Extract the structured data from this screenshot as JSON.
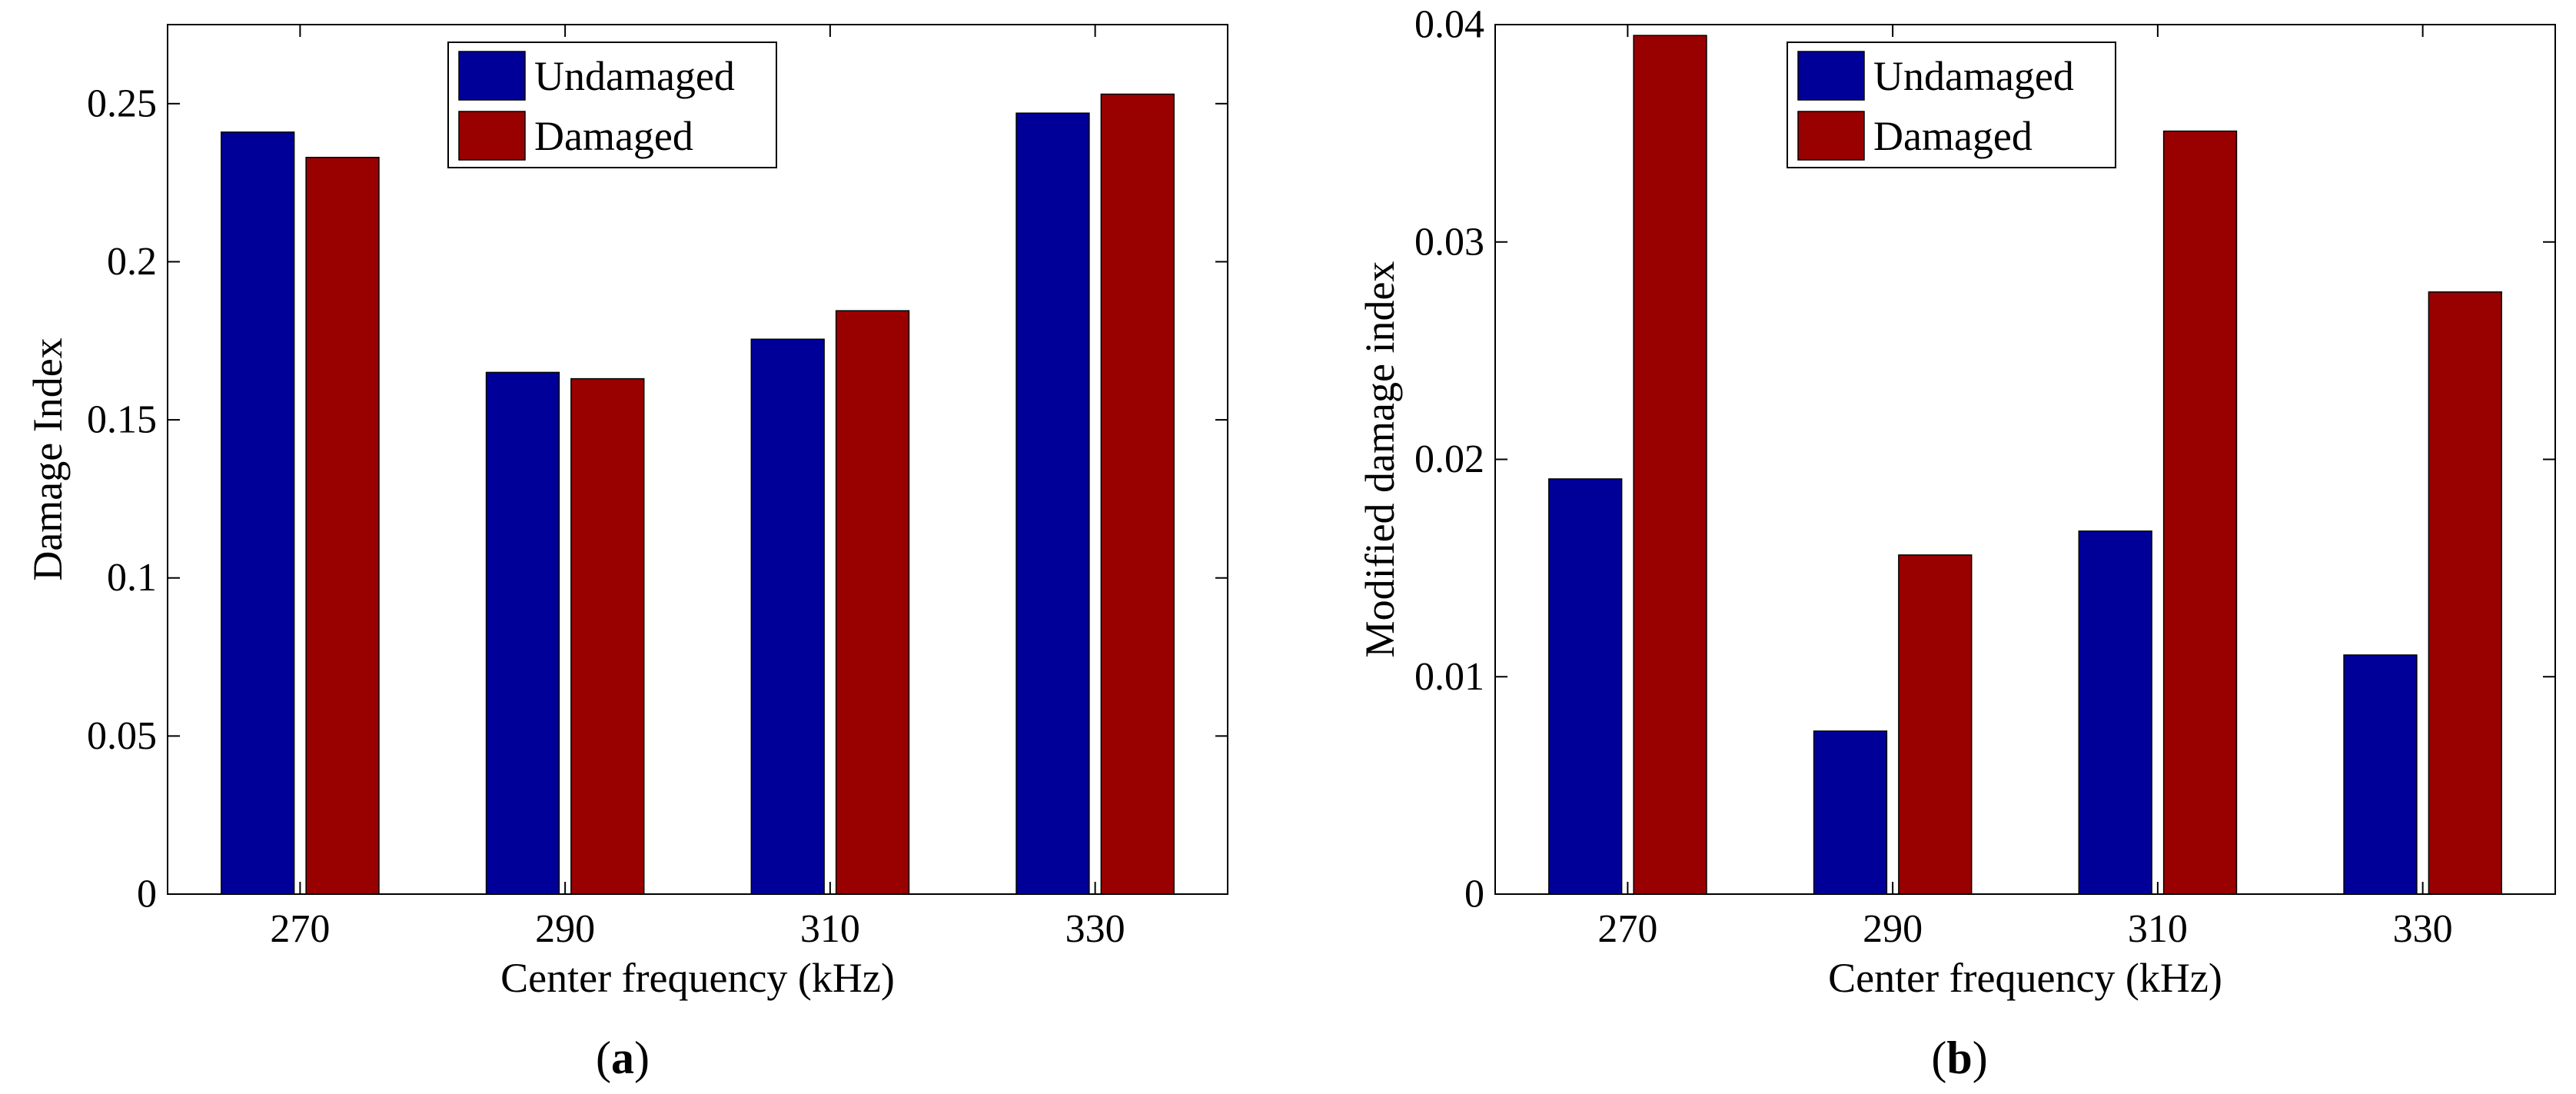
{
  "chart_data": [
    {
      "type": "bar",
      "panel_label": "a",
      "categories": [
        "270",
        "290",
        "310",
        "330"
      ],
      "series": [
        {
          "name": "Undamaged",
          "color": "#000099",
          "values": [
            0.241,
            0.165,
            0.1755,
            0.247
          ]
        },
        {
          "name": "Damaged",
          "color": "#990000",
          "values": [
            0.233,
            0.163,
            0.1845,
            0.253
          ]
        }
      ],
      "xlabel": "Center frequency (kHz)",
      "ylabel": "Damage Index",
      "ylim": [
        0,
        0.275
      ],
      "yticks": [
        {
          "value": 0,
          "label": "0"
        },
        {
          "value": 0.05,
          "label": "0.05"
        },
        {
          "value": 0.1,
          "label": "0.1"
        },
        {
          "value": 0.15,
          "label": "0.15"
        },
        {
          "value": 0.2,
          "label": "0.2"
        },
        {
          "value": 0.25,
          "label": "0.25"
        }
      ],
      "grid": false,
      "legend_position": "top-center"
    },
    {
      "type": "bar",
      "panel_label": "b",
      "categories": [
        "270",
        "290",
        "310",
        "330"
      ],
      "series": [
        {
          "name": "Undamaged",
          "color": "#000099",
          "values": [
            0.0191,
            0.0075,
            0.0167,
            0.011
          ]
        },
        {
          "name": "Damaged",
          "color": "#990000",
          "values": [
            0.0395,
            0.0156,
            0.0351,
            0.0277
          ]
        }
      ],
      "xlabel": "Center frequency (kHz)",
      "ylabel": "Modified damage index",
      "ylim": [
        0,
        0.04
      ],
      "yticks": [
        {
          "value": 0,
          "label": "0"
        },
        {
          "value": 0.01,
          "label": "0.01"
        },
        {
          "value": 0.02,
          "label": "0.02"
        },
        {
          "value": 0.03,
          "label": "0.03"
        },
        {
          "value": 0.04,
          "label": "0.04"
        }
      ],
      "grid": false,
      "legend_position": "top-center"
    }
  ]
}
